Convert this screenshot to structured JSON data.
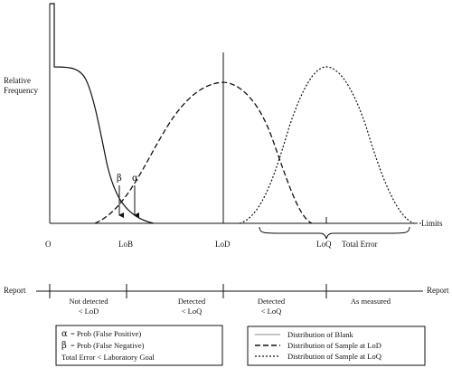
{
  "y_axis_label": [
    "Relative",
    "Frequency"
  ],
  "x_markers": {
    "origin": "O",
    "lob": "LoB",
    "lod": "LoD",
    "loq": "LoQ",
    "total_error": "Total Error",
    "limits": "Limits"
  },
  "greek": {
    "beta": "β",
    "alpha": "α"
  },
  "report": {
    "left_label": "Report",
    "right_label": "Report",
    "zones": [
      {
        "line1": "Not detected",
        "line2": "< LoD"
      },
      {
        "line1": "Detected",
        "line2": "< LoQ"
      },
      {
        "line1": "Detected",
        "line2": "< LoQ"
      },
      {
        "line1": "As measured",
        "line2": ""
      }
    ]
  },
  "definitions": [
    {
      "symbol": "α",
      "text": "= Prob  (False Positive)"
    },
    {
      "symbol": "β",
      "text": "= Prob  (False Negative)"
    }
  ],
  "definitions_footer": "Total Error < Laboratory Goal",
  "legend": [
    {
      "style": "solid",
      "label": "Distribution of Blank"
    },
    {
      "style": "dashed",
      "label": "Distribution of Sample at LoD"
    },
    {
      "style": "dotted",
      "label": "Distribution of Sample at LoQ"
    }
  ]
}
